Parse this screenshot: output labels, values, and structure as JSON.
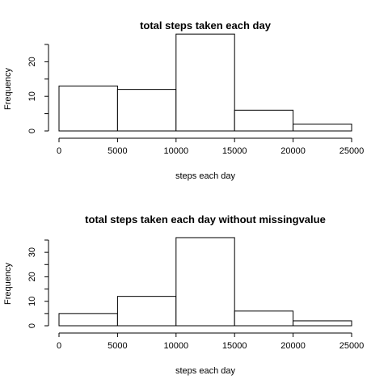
{
  "chart_data": [
    {
      "type": "bar",
      "title": "total steps taken each day",
      "xlabel": "steps each day",
      "ylabel": "Frequency",
      "bins": [
        [
          0,
          5000
        ],
        [
          5000,
          10000
        ],
        [
          10000,
          15000
        ],
        [
          15000,
          20000
        ],
        [
          20000,
          25000
        ]
      ],
      "values": [
        13,
        12,
        28,
        6,
        2
      ],
      "xticks": [
        0,
        5000,
        10000,
        15000,
        20000,
        25000
      ],
      "xtick_labels": [
        "0",
        "5000",
        "10000",
        "15000",
        "20000",
        "25000"
      ],
      "yticks": [
        0,
        10,
        20
      ],
      "ytick_labels": [
        "0",
        "10",
        "20"
      ],
      "xlim": [
        0,
        25000
      ],
      "ylim": [
        0,
        25
      ]
    },
    {
      "type": "bar",
      "title": "total steps taken each day without missingvalue",
      "xlabel": "steps each day",
      "ylabel": "Frequency",
      "bins": [
        [
          0,
          5000
        ],
        [
          5000,
          10000
        ],
        [
          10000,
          15000
        ],
        [
          15000,
          20000
        ],
        [
          20000,
          25000
        ]
      ],
      "values": [
        5,
        12,
        36,
        6,
        2
      ],
      "xticks": [
        0,
        5000,
        10000,
        15000,
        20000,
        25000
      ],
      "xtick_labels": [
        "0",
        "5000",
        "10000",
        "15000",
        "20000",
        "25000"
      ],
      "yticks": [
        0,
        10,
        20,
        30
      ],
      "ytick_labels": [
        "0",
        "10",
        "20",
        "30"
      ],
      "xlim": [
        0,
        25000
      ],
      "ylim": [
        0,
        35
      ]
    }
  ]
}
